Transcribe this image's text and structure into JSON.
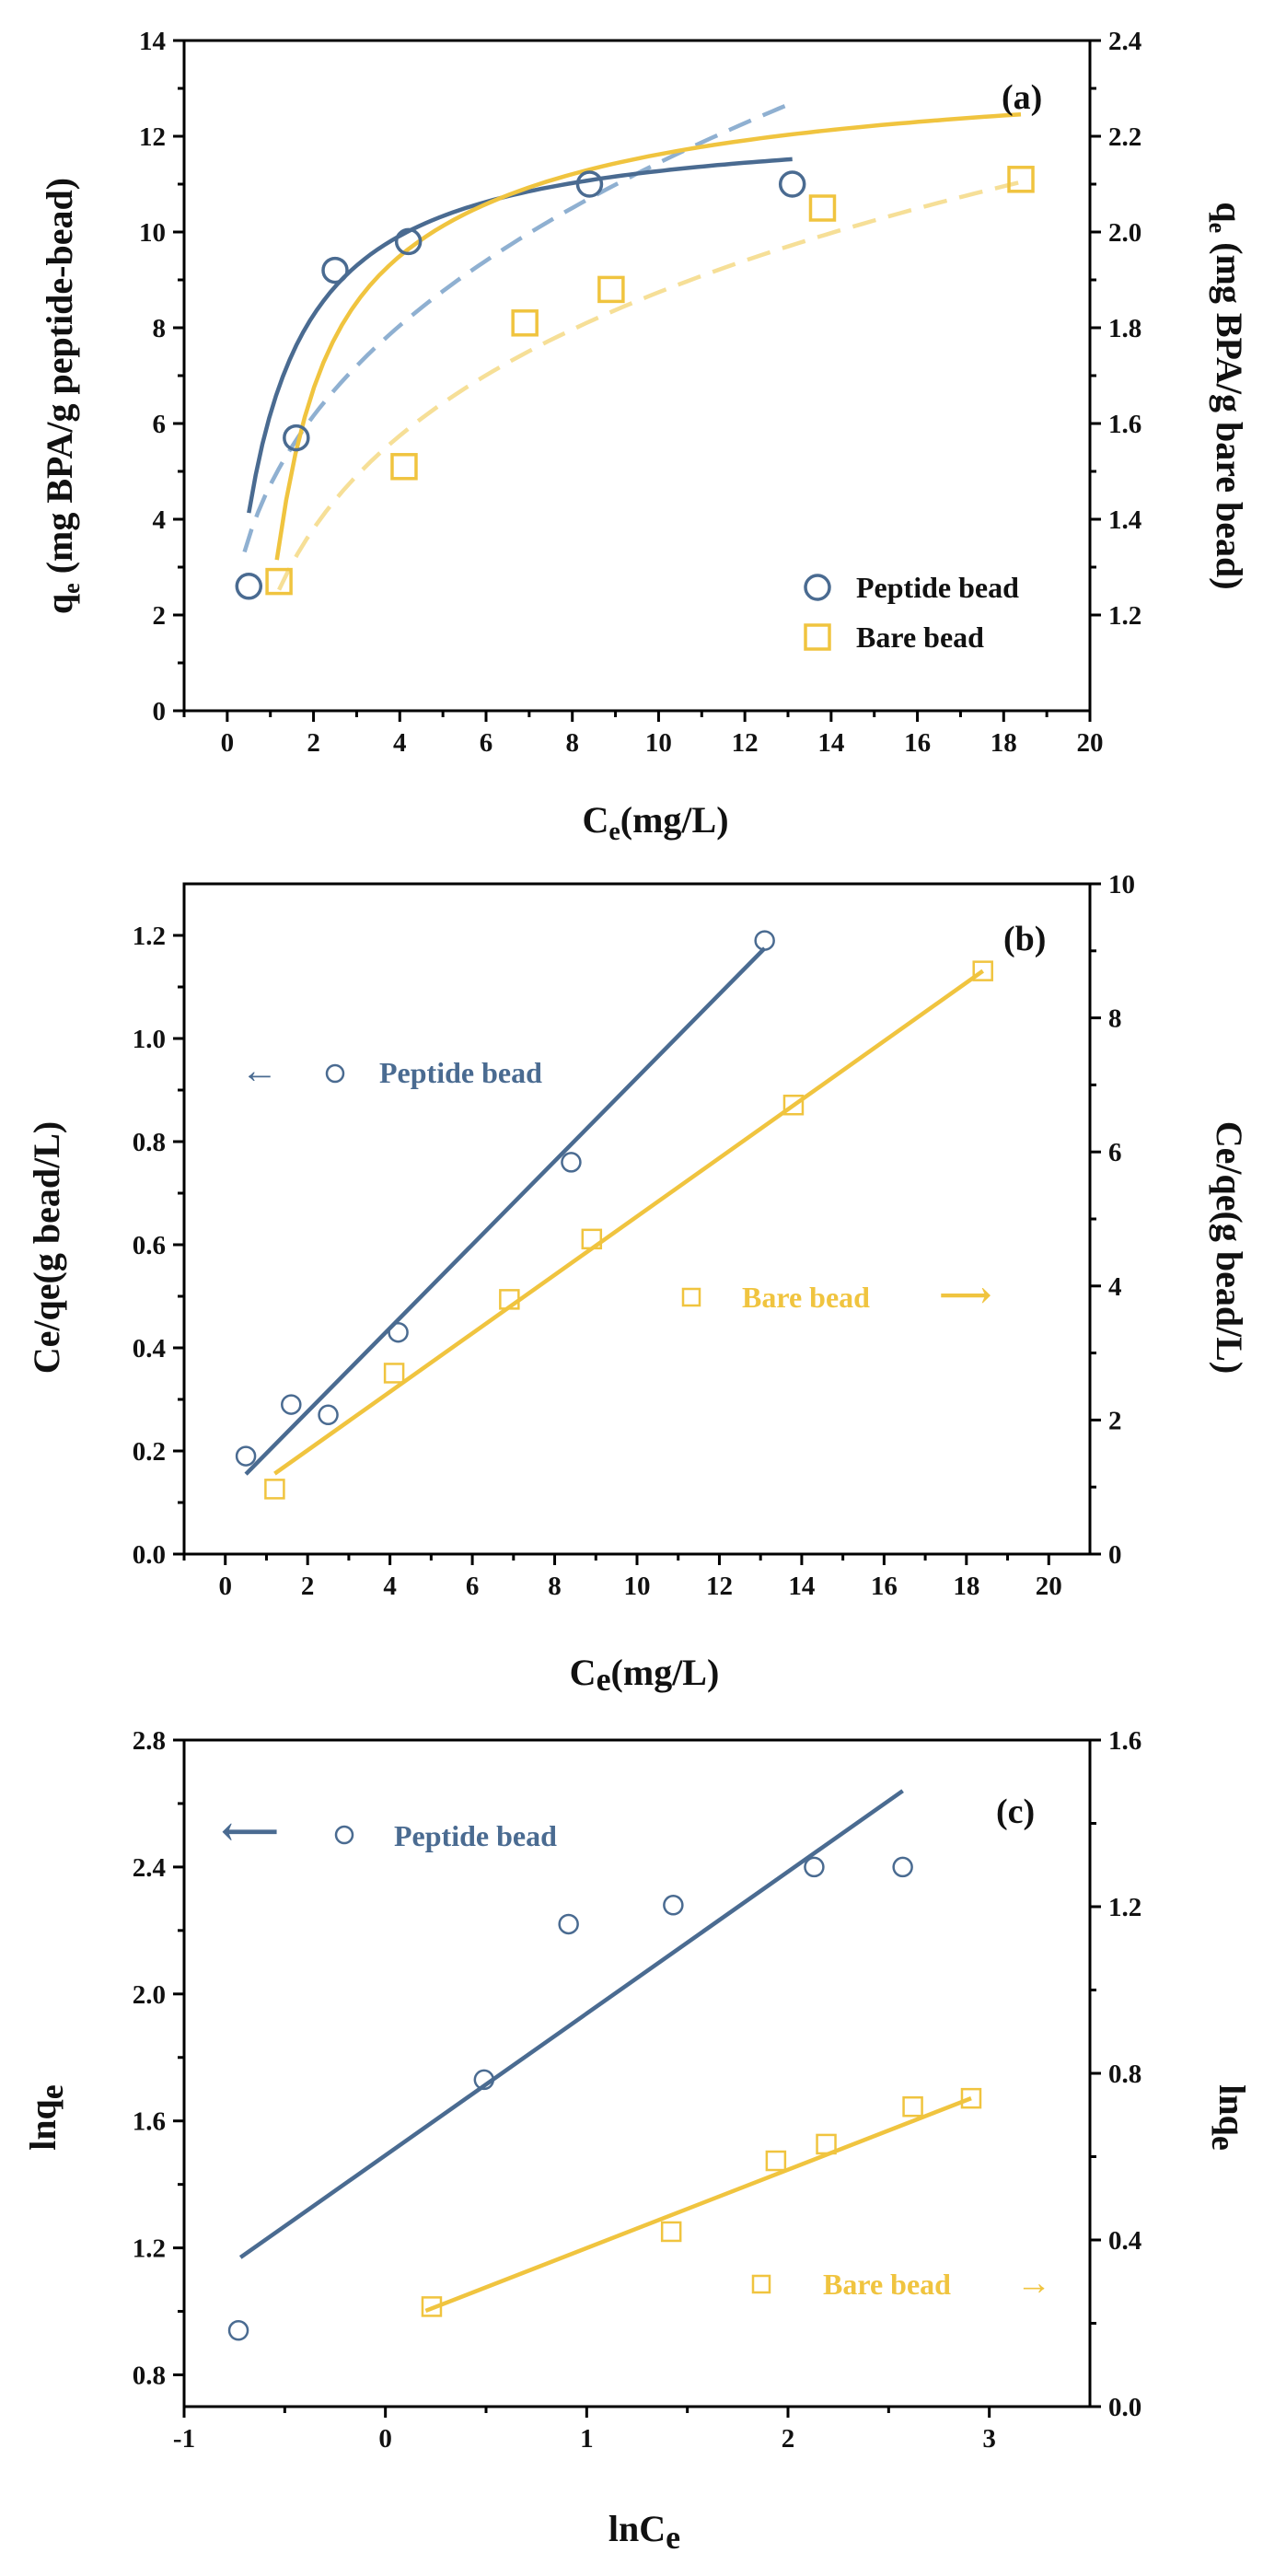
{
  "colors": {
    "peptide": "#4a6b91",
    "peptide_dashed": "#8fb0d1",
    "bare": "#f0c43f",
    "bare_dashed": "#f6df97",
    "axis": "#000000"
  },
  "chart_data": [
    {
      "type": "scatter",
      "panel": "(a)",
      "xlabel_main": "C",
      "xlabel_sub": "e",
      "xlabel_rest": "(mg/L)",
      "ylabel_left_main": "q",
      "ylabel_left_sub": "e",
      "ylabel_left_rest": " (mg BPA/g peptide-bead)",
      "ylabel_right_main": "q",
      "ylabel_right_sub": "e",
      "ylabel_right_rest": " (mg BPA/g bare bead)",
      "xlim": [
        -1,
        20
      ],
      "ylim_left": [
        0,
        14
      ],
      "ylim_right": [
        1.0,
        2.4
      ],
      "xticks": [
        "0",
        "2",
        "4",
        "6",
        "8",
        "10",
        "12",
        "14",
        "16",
        "18",
        "20"
      ],
      "yticks_left": [
        "0",
        "2",
        "4",
        "6",
        "8",
        "10",
        "12",
        "14"
      ],
      "yticks_right": [
        "1.2",
        "1.4",
        "1.6",
        "1.8",
        "2.0",
        "2.2",
        "2.4"
      ],
      "legend_position": "bottom-right",
      "series": [
        {
          "name": "Peptide bead",
          "axis": "left",
          "marker": "circle",
          "x": [
            0.5,
            1.6,
            2.5,
            4.2,
            8.4,
            13.1
          ],
          "y": [
            2.6,
            5.7,
            9.2,
            9.8,
            11.0,
            11.0
          ],
          "fit_solid": {
            "model": "langmuir",
            "qmax": 12.4,
            "K": 1.0,
            "x_range": [
              0.5,
              13.1
            ]
          },
          "fit_dashed": {
            "model": "freundlich",
            "Kf": 4.72,
            "n": 2.6,
            "x_range": [
              0.4,
              13.1
            ]
          }
        },
        {
          "name": "Bare bead",
          "axis": "right",
          "marker": "square",
          "x": [
            1.2,
            4.1,
            6.9,
            8.9,
            13.8,
            18.4
          ],
          "y": [
            1.27,
            1.51,
            1.81,
            1.88,
            2.05,
            2.11
          ],
          "fit_solid": {
            "model": "langmuir_offset",
            "qmax": 2.09,
            "K": 0.58,
            "x_range": [
              1.15,
              18.4
            ]
          },
          "fit_dashed": {
            "model": "power_offset",
            "a": 1.21,
            "b": 0.19,
            "x_range": [
              1.2,
              18.4
            ]
          }
        }
      ]
    },
    {
      "type": "scatter",
      "panel": "(b)",
      "xlabel_main": "C",
      "xlabel_sub": "e",
      "xlabel_rest": "(mg/L)",
      "ylabel_left": "Ce/qe(g bead/L)",
      "ylabel_right": "Ce/qe(g bead/L)",
      "xlim": [
        -1,
        21
      ],
      "ylim_left": [
        0.0,
        1.3
      ],
      "ylim_right": [
        0,
        10
      ],
      "xticks": [
        "0",
        "2",
        "4",
        "6",
        "8",
        "10",
        "12",
        "14",
        "16",
        "18",
        "20"
      ],
      "yticks_left": [
        "0.0",
        "0.2",
        "0.4",
        "0.6",
        "0.8",
        "1.0",
        "1.2"
      ],
      "yticks_right": [
        "0",
        "2",
        "4",
        "6",
        "8",
        "10"
      ],
      "series": [
        {
          "name": "Peptide bead",
          "axis": "left",
          "marker": "circle",
          "x": [
            0.5,
            1.6,
            2.5,
            4.2,
            8.4,
            13.1
          ],
          "y": [
            0.19,
            0.29,
            0.27,
            0.43,
            0.76,
            1.19
          ],
          "fit_line": {
            "x": [
              0.5,
              13.1
            ],
            "y": [
              0.155,
              1.175
            ]
          }
        },
        {
          "name": "Bare bead",
          "axis": "right",
          "marker": "square",
          "x": [
            1.2,
            4.1,
            6.9,
            8.9,
            13.8,
            18.4
          ],
          "y": [
            0.97,
            2.7,
            3.8,
            4.7,
            6.7,
            8.7
          ],
          "fit_line": {
            "x": [
              1.2,
              18.4
            ],
            "y": [
              1.2,
              8.7
            ]
          }
        }
      ],
      "legend": {
        "peptide_arrow": "←",
        "peptide_label": "Peptide bead",
        "bare_label": "Bare bead",
        "bare_arrow": "⟶"
      }
    },
    {
      "type": "scatter",
      "panel": "(c)",
      "xlabel": "lnCe",
      "ylabel_left": "lnqe",
      "ylabel_right": "lnqe",
      "xlim": [
        -1,
        3.5
      ],
      "ylim_left": [
        0.7,
        2.8
      ],
      "ylim_right": [
        0.0,
        1.6
      ],
      "xticks": [
        "-1",
        "0",
        "1",
        "2",
        "3"
      ],
      "yticks_left": [
        "0.8",
        "1.2",
        "1.6",
        "2.0",
        "2.4",
        "2.8"
      ],
      "yticks_right": [
        "0.0",
        "0.4",
        "0.8",
        "1.2",
        "1.6"
      ],
      "series": [
        {
          "name": "Peptide bead",
          "axis": "left",
          "marker": "circle",
          "x": [
            -0.73,
            0.49,
            0.91,
            1.43,
            2.13,
            2.57
          ],
          "y": [
            0.94,
            1.73,
            2.22,
            2.28,
            2.4,
            2.4
          ],
          "fit_line": {
            "x": [
              -0.72,
              2.57
            ],
            "y": [
              1.17,
              2.64
            ]
          }
        },
        {
          "name": "Bare bead",
          "axis": "right",
          "marker": "square",
          "x": [
            0.23,
            1.42,
            1.94,
            2.19,
            2.62,
            2.91
          ],
          "y": [
            0.24,
            0.42,
            0.59,
            0.63,
            0.72,
            0.74
          ],
          "fit_line": {
            "x": [
              0.2,
              2.91
            ],
            "y": [
              0.23,
              0.74
            ]
          }
        }
      ],
      "legend": {
        "peptide_arrow": "⟵",
        "peptide_label": "Peptide bead",
        "bare_label": "Bare bead",
        "bare_arrow": "→"
      }
    }
  ]
}
